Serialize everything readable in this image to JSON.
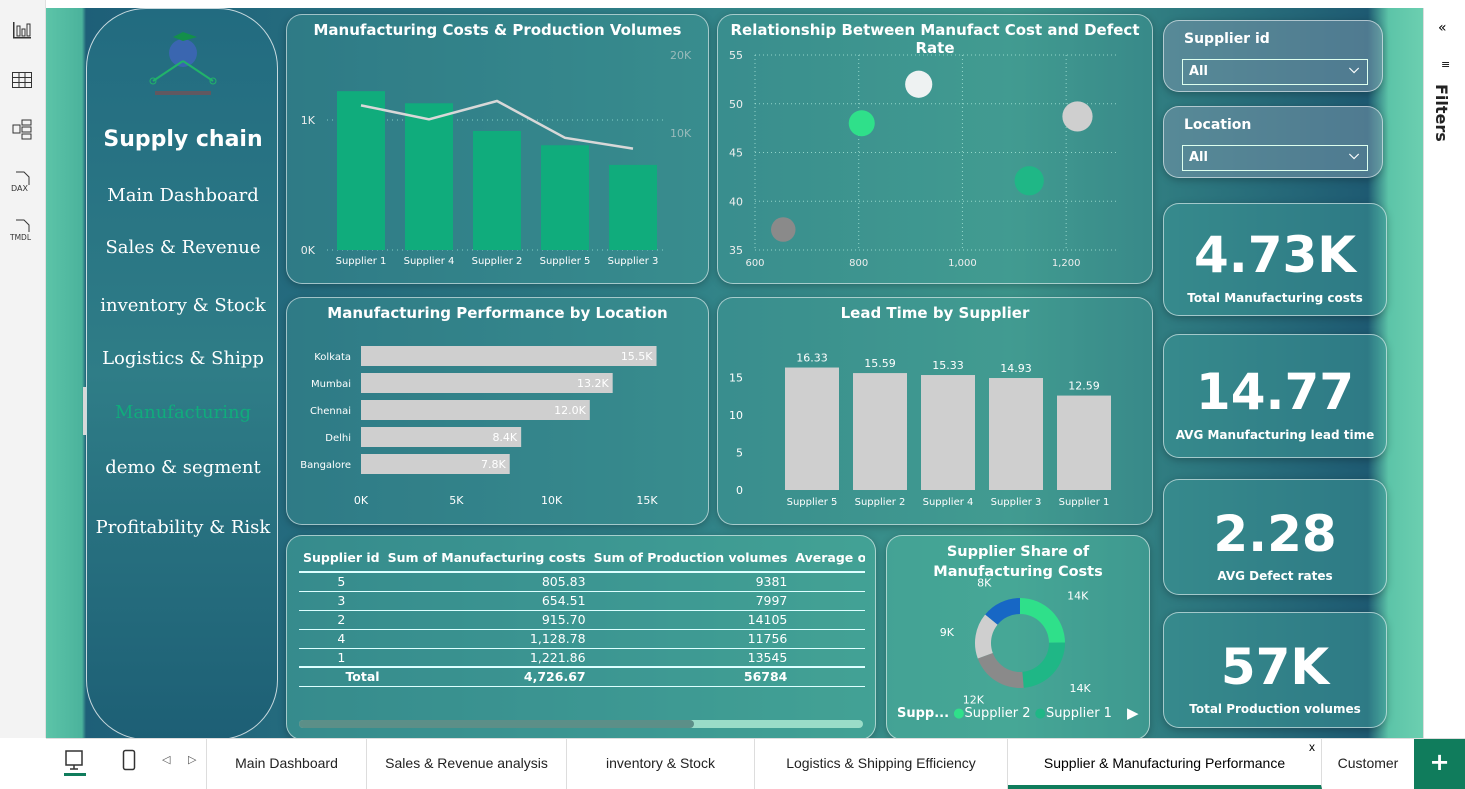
{
  "toolbar": {
    "icons": [
      "report-view-icon",
      "table-view-icon",
      "model-view-icon",
      "dax-query-icon",
      "tmdl-view-icon"
    ],
    "dax": "DAX",
    "tmdl": "TMDL"
  },
  "nav": {
    "title": "Supply chain",
    "items": [
      "Main Dashboard",
      "Sales & Revenue",
      "inventory & Stock",
      "Logistics & Shipp",
      "Manufacturing",
      "demo & segment",
      "Profitability & Risk"
    ],
    "selected": "Manufacturing"
  },
  "colors": {
    "accent": "#10ac7c",
    "bar_gray": "#cfcfcf",
    "donut": [
      "#2fe08a",
      "#1fb786",
      "#8a8a8a",
      "#cfcfcf",
      "#1767c5"
    ]
  },
  "chart_data": [
    {
      "type": "bar+line",
      "title": "Manufacturing Costs & Production Volumes",
      "categories": [
        "Supplier 1",
        "Supplier 4",
        "Supplier 2",
        "Supplier 5",
        "Supplier 3"
      ],
      "series": [
        {
          "name": "Sum of Manufacturing costs",
          "type": "bar",
          "values": [
            1221.86,
            1128.78,
            915.7,
            805.83,
            654.51
          ]
        },
        {
          "name": "Sum of Production volumes",
          "type": "line",
          "values": [
            13545,
            11756,
            14105,
            9381,
            7997
          ]
        }
      ],
      "y_ticks": [
        "0K",
        "1K"
      ],
      "y2_ticks": [
        "10K",
        "20K"
      ],
      "ylim": [
        0,
        1500
      ],
      "y2lim": [
        -5000,
        20000
      ]
    },
    {
      "type": "scatter",
      "title": "Relationship Between Manufact Cost and Defect Rate",
      "x_ticks": [
        "600",
        "800",
        "1,000",
        "1,200"
      ],
      "y_ticks": [
        "35",
        "40",
        "45",
        "50",
        "55"
      ],
      "xlim": [
        600,
        1300
      ],
      "ylim": [
        35,
        55
      ],
      "points": [
        {
          "x": 654.51,
          "y": 37.1,
          "color": "#8a8a8a"
        },
        {
          "x": 805.83,
          "y": 48,
          "color": "#2fe08a"
        },
        {
          "x": 915.7,
          "y": 52,
          "color": "#eef2f2"
        },
        {
          "x": 1128.78,
          "y": 42.1,
          "color": "#1fb786"
        },
        {
          "x": 1221.86,
          "y": 48.7,
          "color": "#cfcfcf"
        }
      ]
    },
    {
      "type": "bar",
      "orientation": "horizontal",
      "title": "Manufacturing Performance by Location",
      "categories": [
        "Kolkata",
        "Mumbai",
        "Chennai",
        "Delhi",
        "Bangalore"
      ],
      "values": [
        15500,
        13200,
        12000,
        8400,
        7800
      ],
      "labels": [
        "15.5K",
        "13.2K",
        "12.0K",
        "8.4K",
        "7.8K"
      ],
      "x_ticks": [
        "0K",
        "5K",
        "10K",
        "15K"
      ],
      "xlim": [
        0,
        15000
      ]
    },
    {
      "type": "bar",
      "title": "Lead Time by Supplier",
      "categories": [
        "Supplier 5",
        "Supplier 2",
        "Supplier 4",
        "Supplier 3",
        "Supplier 1"
      ],
      "values": [
        16.33,
        15.59,
        15.33,
        14.93,
        12.59
      ],
      "labels": [
        "16.33",
        "15.59",
        "15.33",
        "14.93",
        "12.59"
      ],
      "y_ticks": [
        "0",
        "5",
        "10",
        "15"
      ],
      "ylim": [
        0,
        20
      ]
    },
    {
      "type": "pie",
      "donut": true,
      "title": "Supplier Share of Manufacturing Costs",
      "values": [
        14105,
        13545,
        11756,
        9381,
        7997
      ],
      "labels": [
        "14K",
        "14K",
        "12K",
        "9K",
        "8K"
      ],
      "legend": {
        "title": "Supp...",
        "entries": [
          "Supplier 2",
          "Supplier 1"
        ],
        "position": "bottom"
      }
    }
  ],
  "table": {
    "headers": [
      "Supplier id",
      "Sum of Manufacturing costs",
      "Sum of Production volumes",
      "Average of Leac"
    ],
    "rows": [
      [
        "5",
        "805.83",
        "9381"
      ],
      [
        "3",
        "654.51",
        "7997"
      ],
      [
        "2",
        "915.70",
        "14105"
      ],
      [
        "4",
        "1,128.78",
        "11756"
      ],
      [
        "1",
        "1,221.86",
        "13545"
      ]
    ],
    "total": [
      "Total",
      "4,726.67",
      "56784"
    ]
  },
  "slicers": [
    {
      "label": "Supplier id",
      "value": "All"
    },
    {
      "label": "Location",
      "value": "All"
    }
  ],
  "kpis": [
    {
      "value": "4.73K",
      "label": "Total Manufacturing costs"
    },
    {
      "value": "14.77",
      "label": "AVG Manufacturing lead time"
    },
    {
      "value": "2.28",
      "label": "AVG Defect rates"
    },
    {
      "value": "57K",
      "label": "Total Production volumes"
    }
  ],
  "filters": {
    "label": "Filters"
  },
  "tabs": {
    "items": [
      "Main Dashboard",
      "Sales & Revenue analysis",
      "inventory & Stock",
      "Logistics & Shipping Efficiency",
      "Supplier & Manufacturing Performance",
      "Customer"
    ],
    "active": "Supplier & Manufacturing Performance",
    "close": "x",
    "add": "+"
  }
}
